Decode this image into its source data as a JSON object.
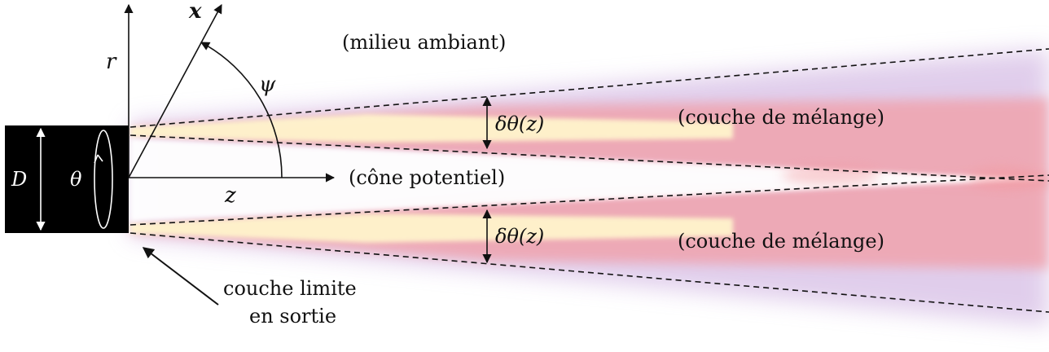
{
  "labels": {
    "ambient": "(milieu ambiant)",
    "mixing_top": "(couche de mélange)",
    "mixing_bottom": "(couche de mélange)",
    "core": "(cône potentiel)",
    "boundary_line1": "couche limite",
    "boundary_line2": "en sortie",
    "thickness_top": "δθ(z)",
    "thickness_bottom": "δθ(z)"
  },
  "symbols": {
    "r": "r",
    "x": "x",
    "psi": "ψ",
    "z": "z",
    "D": "D",
    "theta": "θ"
  },
  "colors": {
    "nozzle": "#000000",
    "jet_core": "#fff4cc",
    "jet_shear": "#f39aa0",
    "jet_outer": "#c7a6dc",
    "line": "#111111"
  }
}
